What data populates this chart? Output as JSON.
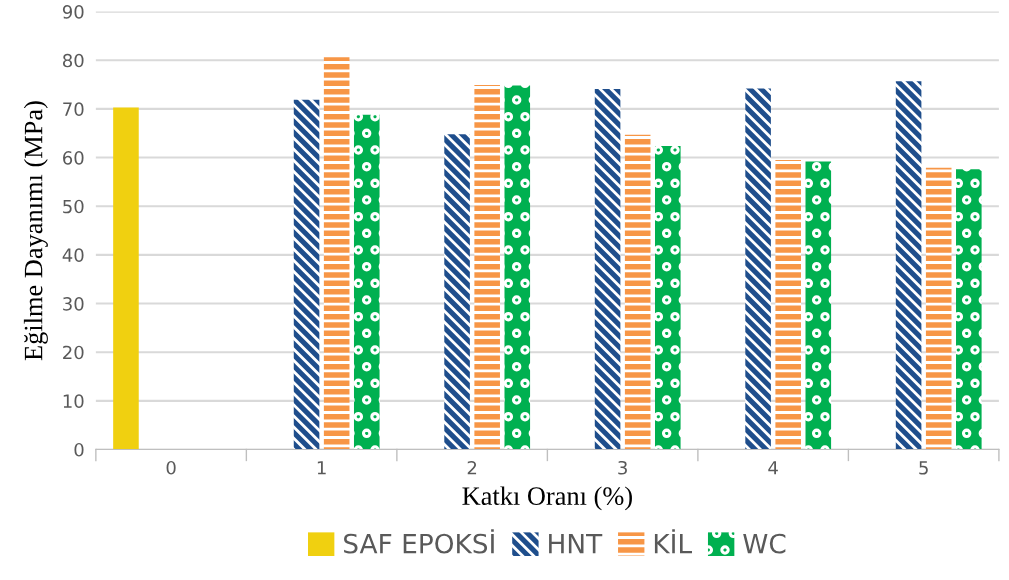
{
  "chart_data": {
    "type": "bar",
    "xlabel": "Katkı Oranı (%)",
    "ylabel": "Eğilme Dayanımı (MPa)",
    "categories": [
      "0",
      "1",
      "2",
      "3",
      "4",
      "5"
    ],
    "series": [
      {
        "name": "SAF EPOKSİ",
        "color": "#f0d010",
        "values": [
          70.3,
          null,
          null,
          null,
          null,
          null
        ]
      },
      {
        "name": "HNT",
        "color": "#1f4e8c",
        "values": [
          null,
          71.9,
          64.8,
          74.1,
          74.2,
          75.7
        ]
      },
      {
        "name": "KİL",
        "color": "#f79646",
        "values": [
          null,
          80.6,
          74.9,
          64.7,
          59.5,
          57.9
        ]
      },
      {
        "name": "WC",
        "color": "#00b050",
        "values": [
          null,
          68.8,
          74.8,
          62.4,
          59.2,
          57.6
        ]
      }
    ],
    "ylim": [
      0,
      90
    ],
    "yticks": [
      0,
      10,
      20,
      30,
      40,
      50,
      60,
      70,
      80,
      90
    ],
    "grid": "y",
    "legend": "bottom"
  }
}
